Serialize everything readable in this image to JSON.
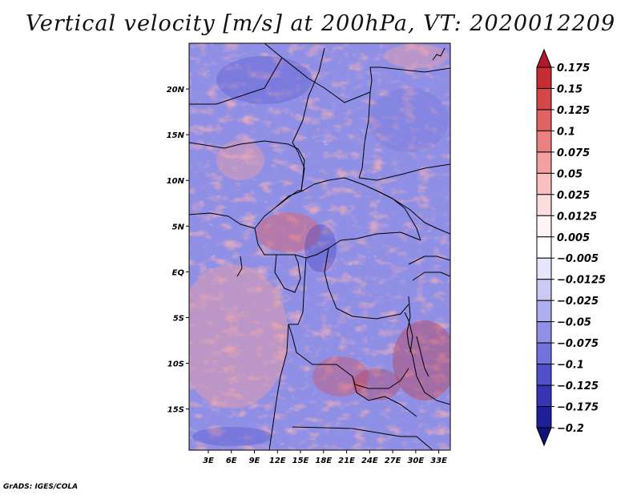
{
  "title": "Vertical velocity [m/s] at 200hPa, VT: 2020012209",
  "credit": "GrADS: IGES/COLA",
  "map": {
    "lat_labels": [
      "20N",
      "15N",
      "10N",
      "5N",
      "EQ",
      "5S",
      "10S",
      "15S"
    ],
    "lat_values": [
      20,
      15,
      10,
      5,
      0,
      -5,
      -10,
      -15
    ],
    "lon_labels": [
      "3E",
      "6E",
      "9E",
      "12E",
      "15E",
      "18E",
      "21E",
      "24E",
      "27E",
      "30E",
      "33E"
    ],
    "lon_values": [
      3,
      6,
      9,
      12,
      15,
      18,
      21,
      24,
      27,
      30,
      33
    ],
    "lon_range": [
      0.5,
      34.5
    ],
    "lat_range": [
      -19.5,
      25
    ]
  },
  "colorbar": {
    "labels": [
      "0.175",
      "0.15",
      "0.125",
      "0.1",
      "0.075",
      "0.05",
      "0.025",
      "0.0125",
      "0.005",
      "-0.005",
      "-0.0125",
      "-0.025",
      "-0.05",
      "-0.075",
      "-0.1",
      "-0.125",
      "-0.175",
      "-0.2"
    ],
    "colors": [
      "#b2182b",
      "#c52d32",
      "#d6474a",
      "#e26264",
      "#ec8080",
      "#f4a0a0",
      "#f9c0c0",
      "#fcdede",
      "#fff3f3",
      "#ffffff",
      "#e6e6fb",
      "#cacaf5",
      "#aeaeef",
      "#9090e6",
      "#7272dc",
      "#5050cc",
      "#3535b5",
      "#1f1f99",
      "#11117a"
    ]
  }
}
